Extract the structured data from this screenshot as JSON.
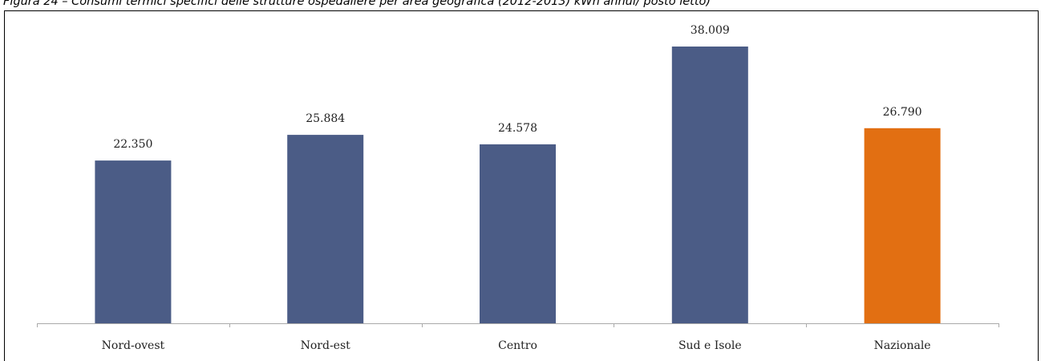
{
  "caption": "Figura 24 – Consumi termici specifici delle strutture ospedaliere per area geografica (2012-2013) kWh annui/ posto letto)",
  "colors": {
    "bar_default": "#4b5c86",
    "bar_highlight": "#e26f12",
    "axis": "#aaaaaa"
  },
  "chart_data": {
    "type": "bar",
    "title": "",
    "xlabel": "",
    "ylabel": "",
    "categories": [
      "Nord-ovest",
      "Nord-est",
      "Centro",
      "Sud e Isole",
      "Nazionale"
    ],
    "values": [
      22350,
      25884,
      24578,
      38009,
      26790
    ],
    "value_labels": [
      "22.350",
      "25.884",
      "24.578",
      "38.009",
      "26.790"
    ],
    "highlight": [
      "Nazionale"
    ],
    "ylim": [
      0,
      40000
    ],
    "grid": false,
    "legend": "none"
  }
}
